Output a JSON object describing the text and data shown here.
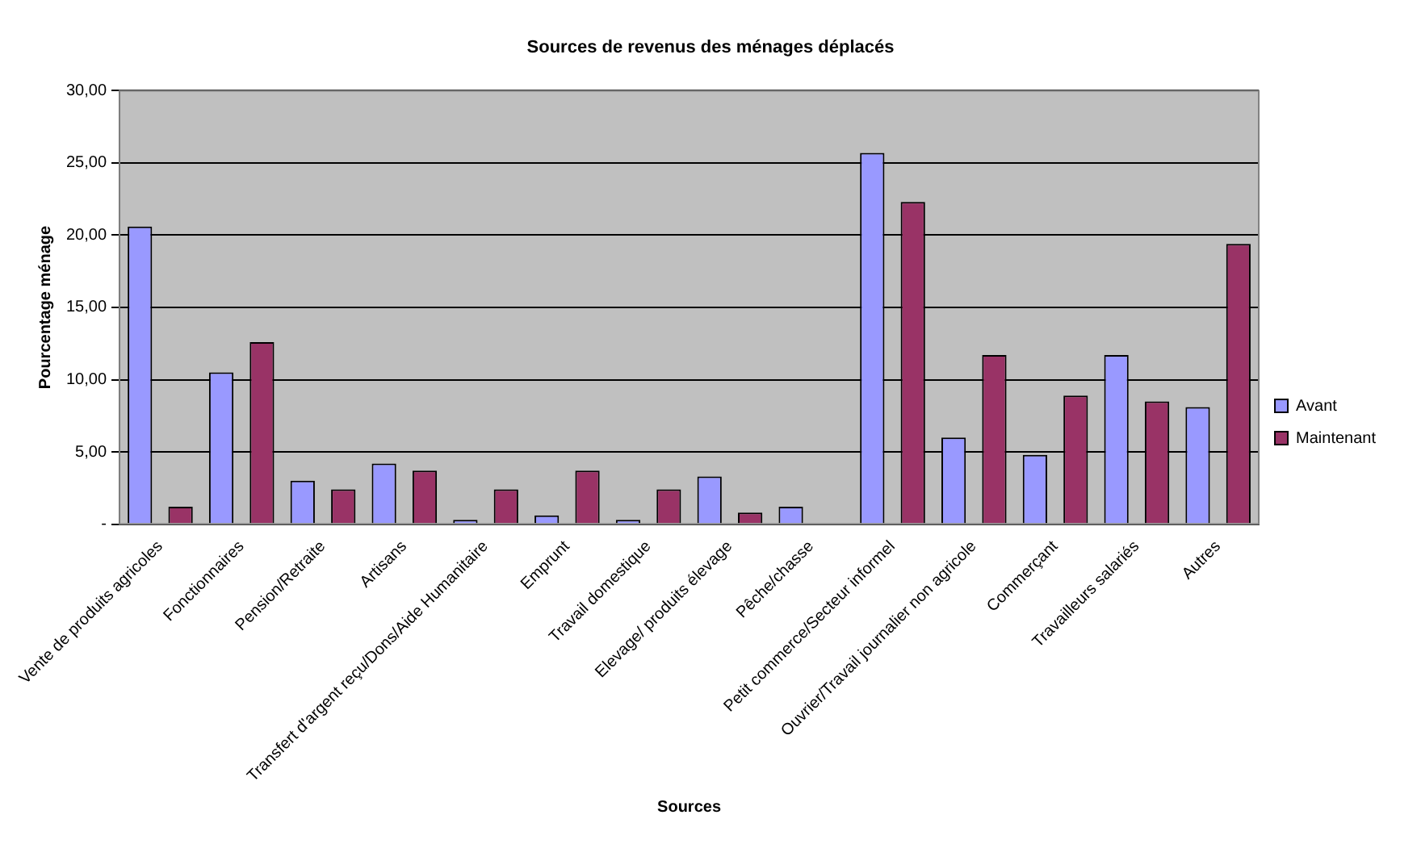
{
  "chart_data": {
    "type": "bar",
    "title": "Sources de revenus des ménages déplacés",
    "xlabel": "Sources",
    "ylabel": "Pourcentage ménage",
    "categories": [
      "Vente de produits agricoles",
      "Fonctionnaires",
      "Pension/Retraite",
      "Artisans",
      "Transfert d'argent reçu/Dons/Aide Humanitaire",
      "Emprunt",
      "Travail domestique",
      "Elevage/ produits élevage",
      "Pêche/chasse",
      "Petit commerce/Secteur informel",
      "Ouvrier/Travail journalier non agricole",
      "Commerçant",
      "Travailleurs salariés",
      "Autres"
    ],
    "series": [
      {
        "name": "Avant",
        "color": "#9999ff",
        "values": [
          20.6,
          10.5,
          3.0,
          4.2,
          0.3,
          0.6,
          0.3,
          3.3,
          1.2,
          25.7,
          6.0,
          4.8,
          11.7,
          8.1
        ]
      },
      {
        "name": "Maintenant",
        "color": "#993366",
        "values": [
          1.2,
          12.6,
          2.4,
          3.7,
          2.4,
          3.7,
          2.4,
          0.8,
          0,
          22.3,
          11.7,
          8.9,
          8.5,
          19.4
        ]
      }
    ],
    "ylim": [
      0,
      30
    ],
    "yticks": [
      {
        "value": 0,
        "label": "-"
      },
      {
        "value": 5,
        "label": "5,00"
      },
      {
        "value": 10,
        "label": "10,00"
      },
      {
        "value": 15,
        "label": "15,00"
      },
      {
        "value": 20,
        "label": "20,00"
      },
      {
        "value": 25,
        "label": "25,00"
      },
      {
        "value": 30,
        "label": "30,00"
      }
    ],
    "grid": "y",
    "legend": "right"
  }
}
